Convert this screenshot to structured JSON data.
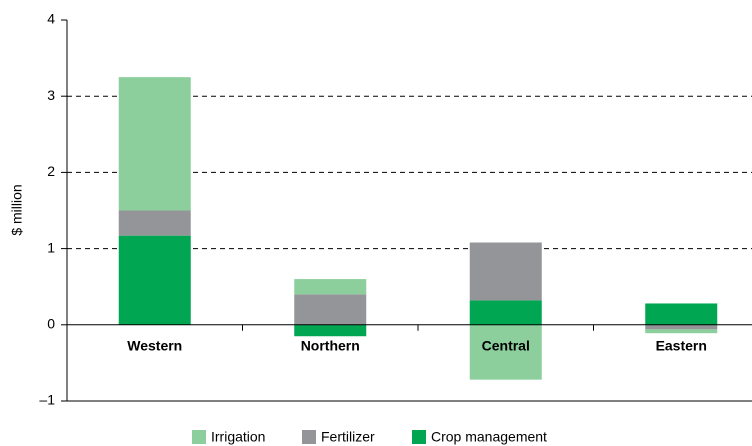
{
  "chart_data": {
    "type": "bar",
    "stacked": true,
    "ylabel": "$ million",
    "categories": [
      "Western",
      "Northern",
      "Central",
      "Eastern"
    ],
    "series": [
      {
        "name": "Irrigation",
        "color": "#8ccf9c",
        "values": [
          1.75,
          0.2,
          -0.72,
          -0.05
        ]
      },
      {
        "name": "Fertilizer",
        "color": "#939598",
        "values": [
          0.33,
          0.4,
          0.76,
          -0.06
        ]
      },
      {
        "name": "Crop management",
        "color": "#00a651",
        "values": [
          1.17,
          -0.15,
          0.32,
          0.28
        ]
      }
    ],
    "ylim": [
      -1,
      4
    ],
    "yticks": [
      {
        "value": -1,
        "label": "–1"
      },
      0,
      1,
      2,
      3,
      4
    ],
    "grid": true,
    "legend": "bottom"
  }
}
